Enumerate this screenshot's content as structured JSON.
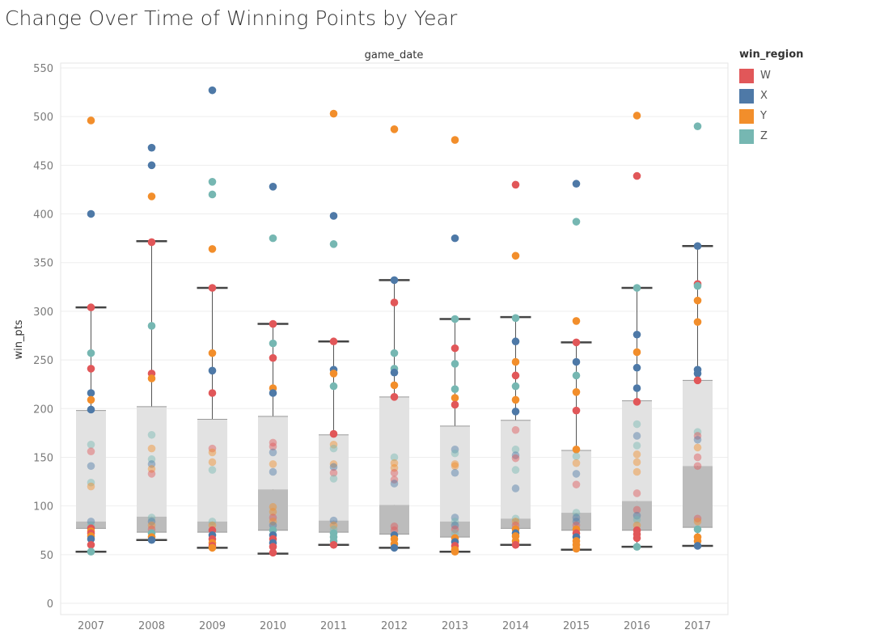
{
  "chart_data": {
    "type": "box-scatter",
    "title": "Change Over Time of Winning Points by Year",
    "header": "game_date",
    "ylabel": "win_pts",
    "ylim": [
      0,
      560
    ],
    "yticks": [
      0,
      50,
      100,
      150,
      200,
      250,
      300,
      350,
      400,
      450,
      500,
      550
    ],
    "grid": true,
    "legend": {
      "title": "win_region",
      "placement": "right",
      "items": [
        {
          "label": "W",
          "color": "#e15759"
        },
        {
          "label": "X",
          "color": "#4e79a7"
        },
        {
          "label": "Y",
          "color": "#f28e2b"
        },
        {
          "label": "Z",
          "color": "#76b7b2"
        }
      ]
    },
    "categories": [
      "2007",
      "2008",
      "2009",
      "2010",
      "2011",
      "2012",
      "2013",
      "2014",
      "2015",
      "2016",
      "2017"
    ],
    "boxes": [
      {
        "whisker_low": 53,
        "q1": 77,
        "median": 84,
        "q3": 198,
        "whisker_high": 304
      },
      {
        "whisker_low": 65,
        "q1": 73,
        "median": 89,
        "q3": 202,
        "whisker_high": 372
      },
      {
        "whisker_low": 57,
        "q1": 73,
        "median": 84,
        "q3": 189,
        "whisker_high": 324
      },
      {
        "whisker_low": 51,
        "q1": 75,
        "median": 117,
        "q3": 192,
        "whisker_high": 287
      },
      {
        "whisker_low": 60,
        "q1": 73,
        "median": 85,
        "q3": 173,
        "whisker_high": 269
      },
      {
        "whisker_low": 57,
        "q1": 71,
        "median": 101,
        "q3": 212,
        "whisker_high": 332
      },
      {
        "whisker_low": 53,
        "q1": 68,
        "median": 84,
        "q3": 182,
        "whisker_high": 292
      },
      {
        "whisker_low": 60,
        "q1": 77,
        "median": 87,
        "q3": 188,
        "whisker_high": 294
      },
      {
        "whisker_low": 55,
        "q1": 75,
        "median": 93,
        "q3": 157,
        "whisker_high": 268
      },
      {
        "whisker_low": 58,
        "q1": 75,
        "median": 105,
        "q3": 208,
        "whisker_high": 324
      },
      {
        "whisker_low": 59,
        "q1": 78,
        "median": 141,
        "q3": 229,
        "whisker_high": 367
      }
    ],
    "points": [
      {
        "year": "2007",
        "pts": [
          [
            496,
            "Y"
          ],
          [
            400,
            "X"
          ],
          [
            304,
            "W"
          ],
          [
            257,
            "Z"
          ],
          [
            241,
            "W"
          ],
          [
            216,
            "X"
          ],
          [
            209,
            "Y"
          ],
          [
            199,
            "X"
          ],
          [
            163,
            "Z"
          ],
          [
            156,
            "W"
          ],
          [
            141,
            "X"
          ],
          [
            124,
            "Z"
          ],
          [
            120,
            "Y"
          ],
          [
            84,
            "X"
          ],
          [
            80,
            "Z"
          ],
          [
            77,
            "W"
          ],
          [
            74,
            "Y"
          ],
          [
            72,
            "W"
          ],
          [
            69,
            "Y"
          ],
          [
            66,
            "X"
          ],
          [
            60,
            "W"
          ],
          [
            53,
            "Z"
          ]
        ]
      },
      {
        "year": "2008",
        "pts": [
          [
            468,
            "X"
          ],
          [
            450,
            "X"
          ],
          [
            418,
            "Y"
          ],
          [
            371,
            "W"
          ],
          [
            285,
            "Z"
          ],
          [
            236,
            "W"
          ],
          [
            231,
            "Y"
          ],
          [
            173,
            "Z"
          ],
          [
            159,
            "Y"
          ],
          [
            148,
            "Z"
          ],
          [
            143,
            "X"
          ],
          [
            138,
            "Y"
          ],
          [
            133,
            "W"
          ],
          [
            88,
            "Z"
          ],
          [
            84,
            "X"
          ],
          [
            80,
            "Y"
          ],
          [
            76,
            "W"
          ],
          [
            72,
            "Z"
          ],
          [
            68,
            "Y"
          ],
          [
            65,
            "X"
          ]
        ]
      },
      {
        "year": "2009",
        "pts": [
          [
            527,
            "X"
          ],
          [
            433,
            "Z"
          ],
          [
            420,
            "Z"
          ],
          [
            364,
            "Y"
          ],
          [
            324,
            "W"
          ],
          [
            257,
            "Y"
          ],
          [
            239,
            "X"
          ],
          [
            216,
            "W"
          ],
          [
            159,
            "W"
          ],
          [
            155,
            "Y"
          ],
          [
            145,
            "Y"
          ],
          [
            137,
            "Z"
          ],
          [
            84,
            "Z"
          ],
          [
            80,
            "Y"
          ],
          [
            75,
            "W"
          ],
          [
            70,
            "X"
          ],
          [
            66,
            "W"
          ],
          [
            62,
            "Y"
          ],
          [
            59,
            "W"
          ],
          [
            57,
            "Y"
          ]
        ]
      },
      {
        "year": "2010",
        "pts": [
          [
            428,
            "X"
          ],
          [
            375,
            "Z"
          ],
          [
            287,
            "W"
          ],
          [
            267,
            "Z"
          ],
          [
            252,
            "W"
          ],
          [
            221,
            "Y"
          ],
          [
            216,
            "X"
          ],
          [
            165,
            "W"
          ],
          [
            161,
            "W"
          ],
          [
            155,
            "X"
          ],
          [
            143,
            "Y"
          ],
          [
            135,
            "X"
          ],
          [
            99,
            "Y"
          ],
          [
            94,
            "Y"
          ],
          [
            88,
            "W"
          ],
          [
            84,
            "Y"
          ],
          [
            80,
            "X"
          ],
          [
            75,
            "Z"
          ],
          [
            70,
            "X"
          ],
          [
            66,
            "W"
          ],
          [
            62,
            "X"
          ],
          [
            58,
            "W"
          ],
          [
            52,
            "W"
          ]
        ]
      },
      {
        "year": "2011",
        "pts": [
          [
            503,
            "Y"
          ],
          [
            398,
            "X"
          ],
          [
            369,
            "Z"
          ],
          [
            269,
            "W"
          ],
          [
            240,
            "X"
          ],
          [
            236,
            "Y"
          ],
          [
            223,
            "Z"
          ],
          [
            174,
            "W"
          ],
          [
            163,
            "Y"
          ],
          [
            159,
            "Z"
          ],
          [
            143,
            "Y"
          ],
          [
            140,
            "X"
          ],
          [
            134,
            "W"
          ],
          [
            128,
            "Z"
          ],
          [
            85,
            "X"
          ],
          [
            80,
            "Y"
          ],
          [
            76,
            "Z"
          ],
          [
            72,
            "Z"
          ],
          [
            68,
            "Z"
          ],
          [
            64,
            "Z"
          ],
          [
            60,
            "W"
          ]
        ]
      },
      {
        "year": "2012",
        "pts": [
          [
            487,
            "Y"
          ],
          [
            332,
            "X"
          ],
          [
            309,
            "W"
          ],
          [
            257,
            "Z"
          ],
          [
            241,
            "Z"
          ],
          [
            237,
            "X"
          ],
          [
            224,
            "Y"
          ],
          [
            212,
            "W"
          ],
          [
            150,
            "Z"
          ],
          [
            144,
            "Y"
          ],
          [
            139,
            "Y"
          ],
          [
            134,
            "W"
          ],
          [
            127,
            "W"
          ],
          [
            123,
            "X"
          ],
          [
            79,
            "W"
          ],
          [
            75,
            "W"
          ],
          [
            70,
            "X"
          ],
          [
            66,
            "Y"
          ],
          [
            61,
            "Y"
          ],
          [
            57,
            "X"
          ]
        ]
      },
      {
        "year": "2013",
        "pts": [
          [
            476,
            "Y"
          ],
          [
            375,
            "X"
          ],
          [
            292,
            "Z"
          ],
          [
            262,
            "W"
          ],
          [
            246,
            "Z"
          ],
          [
            220,
            "Z"
          ],
          [
            211,
            "Y"
          ],
          [
            204,
            "W"
          ],
          [
            158,
            "X"
          ],
          [
            154,
            "Z"
          ],
          [
            143,
            "Y"
          ],
          [
            141,
            "Y"
          ],
          [
            134,
            "X"
          ],
          [
            88,
            "X"
          ],
          [
            84,
            "Z"
          ],
          [
            80,
            "X"
          ],
          [
            76,
            "W"
          ],
          [
            72,
            "Z"
          ],
          [
            67,
            "Y"
          ],
          [
            63,
            "X"
          ],
          [
            59,
            "W"
          ],
          [
            55,
            "Y"
          ],
          [
            53,
            "Y"
          ]
        ]
      },
      {
        "year": "2014",
        "pts": [
          [
            430,
            "W"
          ],
          [
            357,
            "Y"
          ],
          [
            293,
            "Z"
          ],
          [
            269,
            "X"
          ],
          [
            248,
            "Y"
          ],
          [
            234,
            "W"
          ],
          [
            223,
            "Z"
          ],
          [
            209,
            "Y"
          ],
          [
            197,
            "X"
          ],
          [
            178,
            "W"
          ],
          [
            158,
            "Z"
          ],
          [
            152,
            "X"
          ],
          [
            149,
            "W"
          ],
          [
            137,
            "Z"
          ],
          [
            118,
            "X"
          ],
          [
            87,
            "Z"
          ],
          [
            84,
            "Y"
          ],
          [
            80,
            "W"
          ],
          [
            76,
            "Y"
          ],
          [
            72,
            "X"
          ],
          [
            69,
            "Y"
          ],
          [
            64,
            "Y"
          ],
          [
            60,
            "W"
          ]
        ]
      },
      {
        "year": "2015",
        "pts": [
          [
            431,
            "X"
          ],
          [
            392,
            "Z"
          ],
          [
            290,
            "Y"
          ],
          [
            268,
            "W"
          ],
          [
            248,
            "X"
          ],
          [
            234,
            "Z"
          ],
          [
            217,
            "Y"
          ],
          [
            198,
            "W"
          ],
          [
            158,
            "Y"
          ],
          [
            151,
            "Z"
          ],
          [
            144,
            "Y"
          ],
          [
            133,
            "X"
          ],
          [
            122,
            "W"
          ],
          [
            93,
            "Z"
          ],
          [
            88,
            "X"
          ],
          [
            84,
            "X"
          ],
          [
            80,
            "W"
          ],
          [
            76,
            "Y"
          ],
          [
            72,
            "W"
          ],
          [
            68,
            "X"
          ],
          [
            64,
            "Y"
          ],
          [
            60,
            "Y"
          ],
          [
            56,
            "Y"
          ]
        ]
      },
      {
        "year": "2016",
        "pts": [
          [
            501,
            "Y"
          ],
          [
            439,
            "W"
          ],
          [
            324,
            "Z"
          ],
          [
            276,
            "X"
          ],
          [
            258,
            "Y"
          ],
          [
            242,
            "X"
          ],
          [
            221,
            "X"
          ],
          [
            207,
            "W"
          ],
          [
            184,
            "Z"
          ],
          [
            172,
            "X"
          ],
          [
            162,
            "Z"
          ],
          [
            153,
            "Y"
          ],
          [
            145,
            "Y"
          ],
          [
            135,
            "Y"
          ],
          [
            113,
            "W"
          ],
          [
            96,
            "W"
          ],
          [
            90,
            "X"
          ],
          [
            86,
            "Z"
          ],
          [
            80,
            "Y"
          ],
          [
            75,
            "W"
          ],
          [
            71,
            "W"
          ],
          [
            67,
            "W"
          ],
          [
            58,
            "Z"
          ]
        ]
      },
      {
        "year": "2017",
        "pts": [
          [
            490,
            "Z"
          ],
          [
            367,
            "X"
          ],
          [
            328,
            "W"
          ],
          [
            326,
            "Z"
          ],
          [
            311,
            "Y"
          ],
          [
            289,
            "Y"
          ],
          [
            240,
            "X"
          ],
          [
            236,
            "X"
          ],
          [
            229,
            "W"
          ],
          [
            176,
            "Z"
          ],
          [
            172,
            "W"
          ],
          [
            168,
            "X"
          ],
          [
            160,
            "Y"
          ],
          [
            150,
            "W"
          ],
          [
            141,
            "W"
          ],
          [
            87,
            "W"
          ],
          [
            84,
            "Y"
          ],
          [
            76,
            "Z"
          ],
          [
            68,
            "Y"
          ],
          [
            64,
            "Y"
          ],
          [
            59,
            "X"
          ]
        ]
      }
    ]
  }
}
